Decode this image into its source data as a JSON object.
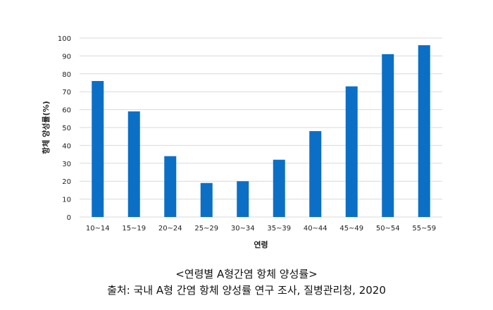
{
  "chart_data": {
    "type": "bar",
    "categories": [
      "10~14",
      "15~19",
      "20~24",
      "25~29",
      "30~34",
      "35~39",
      "40~44",
      "45~49",
      "50~54",
      "55~59"
    ],
    "values": [
      76,
      59,
      34,
      19,
      20,
      32,
      48,
      73,
      91,
      96
    ],
    "xlabel": "연령",
    "ylabel": "항체 양성률(%)",
    "ylim": [
      0,
      100
    ],
    "yticks": [
      0,
      10,
      20,
      30,
      40,
      50,
      60,
      70,
      80,
      90,
      100
    ],
    "grid": true,
    "legend": "none",
    "bar_color": "#0b6fc6",
    "grid_color": "#d9d9d9"
  },
  "caption": {
    "title": "<연령별 A형간염 항체 양성률>",
    "source": "출처: 국내 A형 간염 항체 양성률 연구 조사, 질병관리청, 2020"
  }
}
